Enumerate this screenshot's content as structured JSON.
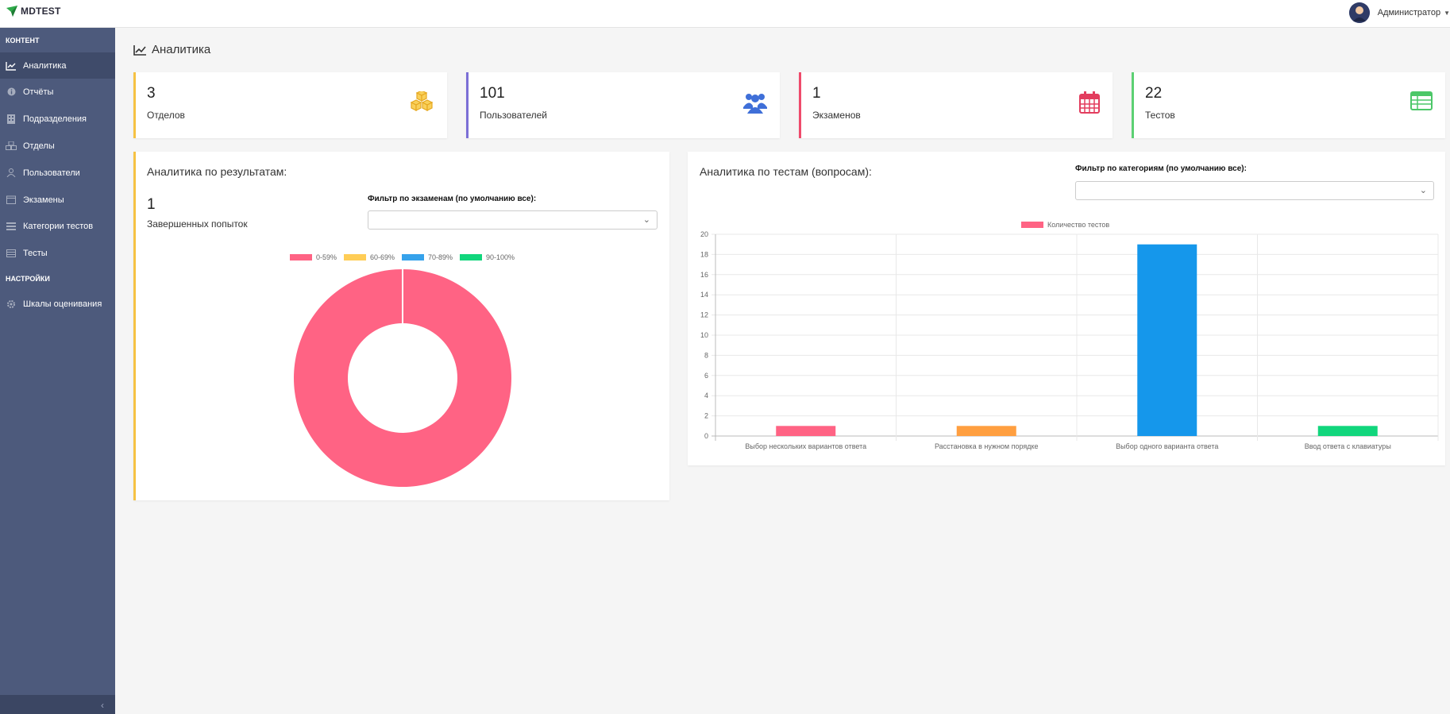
{
  "app": {
    "name": "MDTEST"
  },
  "user": {
    "name": "Администратор"
  },
  "sidebar": {
    "sections": [
      {
        "title": "КОНТЕНТ"
      },
      {
        "title": "НАСТРОЙКИ"
      }
    ],
    "items": [
      {
        "label": "Аналитика",
        "icon": "chart-line-icon",
        "active": true
      },
      {
        "label": "Отчёты",
        "icon": "info-icon"
      },
      {
        "label": "Подразделения",
        "icon": "building-icon"
      },
      {
        "label": "Отделы",
        "icon": "cubes-icon"
      },
      {
        "label": "Пользователи",
        "icon": "users-icon"
      },
      {
        "label": "Экзамены",
        "icon": "calendar-icon"
      },
      {
        "label": "Категории тестов",
        "icon": "list-icon"
      },
      {
        "label": "Тесты",
        "icon": "table-icon"
      },
      {
        "label": "Шкалы оценивания",
        "icon": "gear-icon"
      }
    ]
  },
  "page": {
    "title": "Аналитика"
  },
  "stats": [
    {
      "value": "3",
      "label": "Отделов",
      "color": "#f6c244",
      "icon": "cubes-icon"
    },
    {
      "value": "101",
      "label": "Пользователей",
      "color": "#7b6fd6",
      "icon": "users-icon"
    },
    {
      "value": "1",
      "label": "Экзаменов",
      "color": "#ef4a6b",
      "icon": "calendar-icon"
    },
    {
      "value": "22",
      "label": "Тестов",
      "color": "#5cd073",
      "icon": "table-icon"
    }
  ],
  "results_panel": {
    "title": "Аналитика по результатам:",
    "count": "1",
    "count_label": "Завершенных попыток",
    "filter_label": "Фильтр по экзаменам (по умолчанию все):",
    "filter_value": ""
  },
  "tests_panel": {
    "title": "Аналитика по тестам (вопросам):",
    "filter_label": "Фильтр по категориям (по умолчанию все):",
    "filter_value": ""
  },
  "chart_data": [
    {
      "type": "pie",
      "title": "",
      "categories": [
        "0-59%",
        "60-69%",
        "70-89%",
        "90-100%"
      ],
      "values": [
        1,
        0,
        0,
        0
      ],
      "colors": [
        "#ff6384",
        "#ffcd56",
        "#36a2eb",
        "#11d67c"
      ],
      "legend": "top"
    },
    {
      "type": "bar",
      "title": "",
      "categories": [
        "Выбор нескольких вариантов ответа",
        "Расстановка в нужном порядке",
        "Выбор одного варианта ответа",
        "Ввод ответа с клавиатуры"
      ],
      "series": [
        {
          "name": "Количество тестов",
          "values": [
            1,
            1,
            19,
            1
          ]
        }
      ],
      "colors": [
        "#ff6384",
        "#ff9f40",
        "#1597eb",
        "#11d67c"
      ],
      "ylim": [
        0,
        20
      ],
      "yticks": [
        "0",
        "2",
        "4",
        "6",
        "8",
        "10",
        "12",
        "14",
        "16",
        "18",
        "20"
      ],
      "grid": true,
      "legend": "top"
    }
  ],
  "colors": {
    "sidebar": "#4d5a7c",
    "sidebar_active": "#3f4b6a",
    "results_accent": "#f6c244"
  }
}
